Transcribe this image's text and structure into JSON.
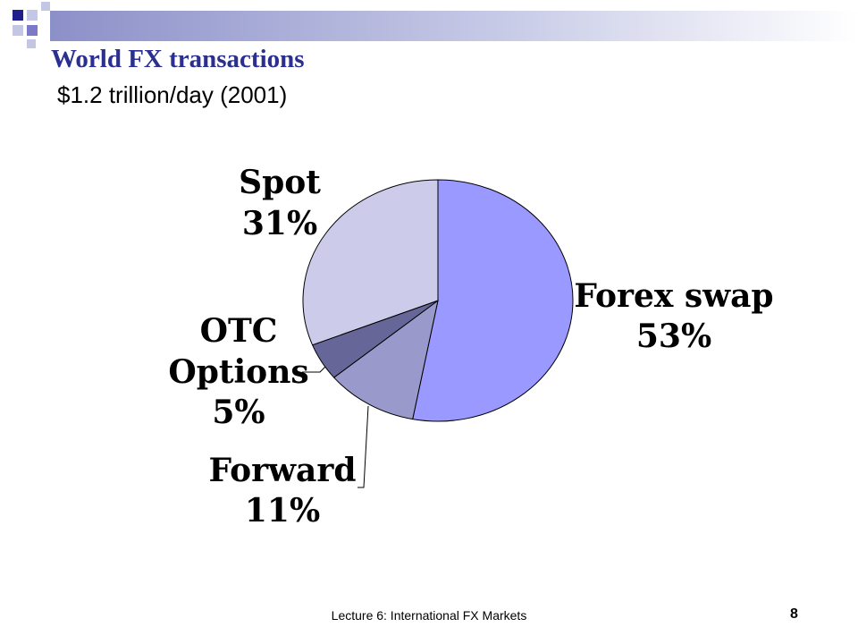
{
  "slide": {
    "title": "World FX transactions",
    "subtitle": "$1.2 trillion/day (2001)",
    "footer": "Lecture 6: International FX Markets",
    "page_number": "8"
  },
  "colors": {
    "title": "#2b2f8f",
    "deco_dark": "#1e1e8c",
    "deco_mid": "#7a7ac8",
    "deco_light": "#c3c6e4"
  },
  "chart_data": {
    "type": "pie",
    "start": "12 o'clock",
    "direction": "clockwise",
    "slices": [
      {
        "label": "Forex swap",
        "value_label": "53%",
        "value": 53,
        "color": "#9999ff"
      },
      {
        "label": "Forward",
        "value_label": "11%",
        "value": 11,
        "color": "#9999cc"
      },
      {
        "label": "OTC Options",
        "label_lines": [
          "OTC",
          "Options"
        ],
        "value_label": "5%",
        "value": 5,
        "color": "#666699"
      },
      {
        "label": "Spot",
        "value_label": "31%",
        "value": 31,
        "color": "#ccccea"
      }
    ]
  }
}
